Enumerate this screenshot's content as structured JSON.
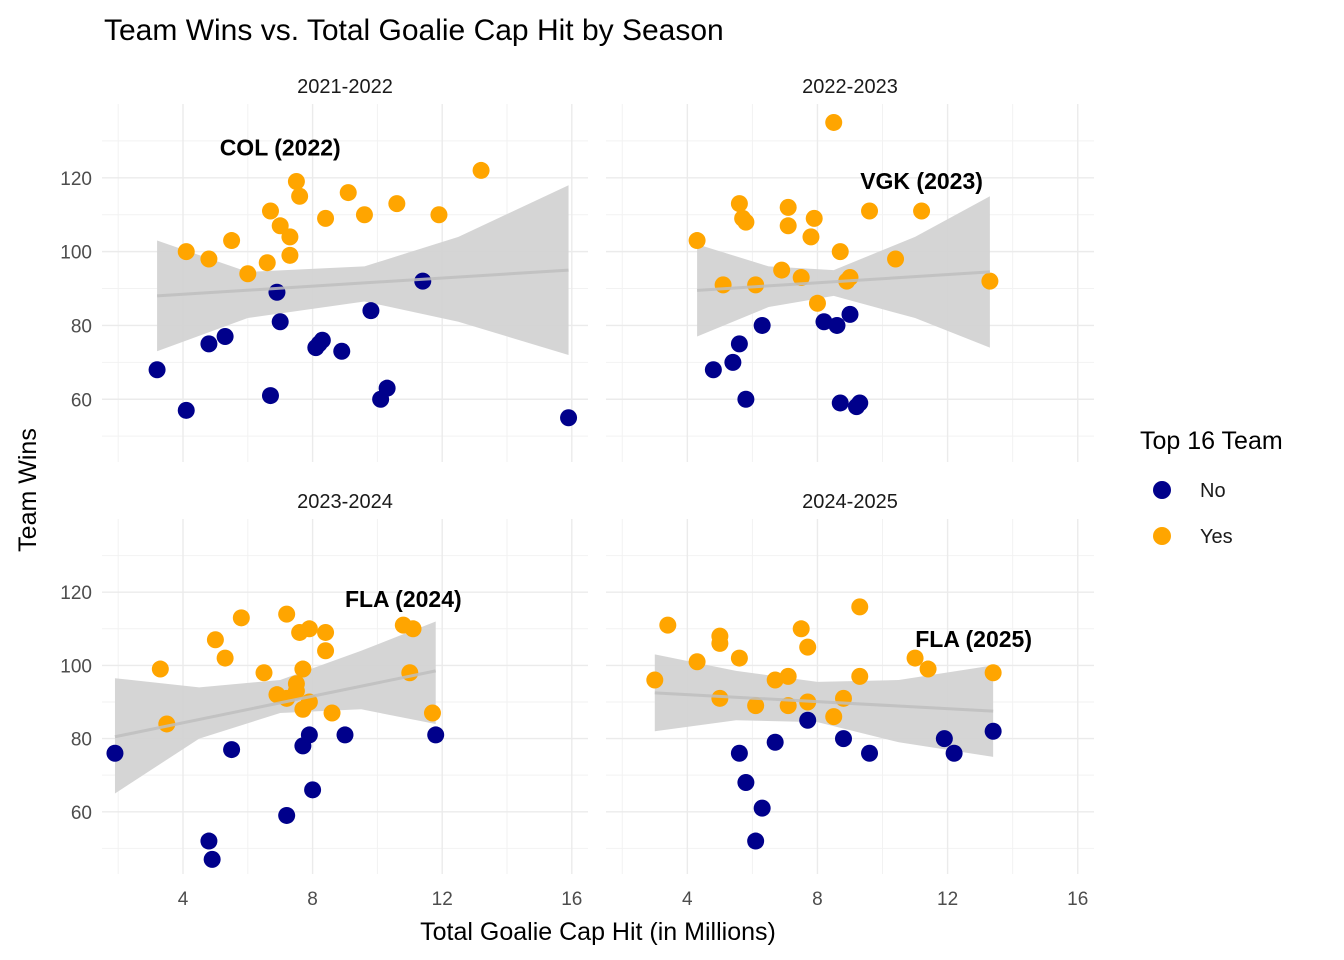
{
  "chart_data": {
    "type": "scatter",
    "title": "Team Wins vs. Total Goalie Cap Hit by Season",
    "xlabel": "Total Goalie Cap Hit (in Millions)",
    "ylabel": "Team Wins",
    "xlim": [
      1.5,
      16.5
    ],
    "ylim": [
      43,
      140
    ],
    "x_ticks": [
      4,
      8,
      12,
      16
    ],
    "y_ticks": [
      60,
      80,
      100,
      120
    ],
    "grid": true,
    "legend": {
      "title": "Top 16 Team",
      "position": "right",
      "entries": [
        {
          "label": "No",
          "color": "#00008B"
        },
        {
          "label": "Yes",
          "color": "#FFA500"
        }
      ]
    },
    "colors": {
      "No": "#00008B",
      "Yes": "#FFA500",
      "trend": "#BEBEBE",
      "band": "#D3D3D3"
    },
    "panels": [
      {
        "name": "2021-2022",
        "annotation": {
          "text": "COL (2022)",
          "x": 7.0,
          "y": 126
        },
        "trend": {
          "x0": 3.2,
          "y0": 88,
          "x1": 15.9,
          "y1": 95
        },
        "band": {
          "x": [
            3.2,
            6,
            9.6,
            12.5,
            15.9
          ],
          "upper": [
            103,
            94.5,
            96,
            104,
            118
          ],
          "lower": [
            73,
            82,
            86.5,
            81,
            72
          ]
        },
        "no": [
          [
            3.2,
            68
          ],
          [
            4.1,
            57
          ],
          [
            4.8,
            75
          ],
          [
            5.3,
            77
          ],
          [
            6.7,
            61
          ],
          [
            6.9,
            89
          ],
          [
            7.0,
            81
          ],
          [
            8.1,
            74
          ],
          [
            8.3,
            76
          ],
          [
            8.2,
            75
          ],
          [
            8.9,
            73
          ],
          [
            9.8,
            84
          ],
          [
            10.1,
            60
          ],
          [
            10.3,
            63
          ],
          [
            11.4,
            92
          ],
          [
            15.9,
            55
          ]
        ],
        "yes": [
          [
            4.1,
            100
          ],
          [
            4.8,
            98
          ],
          [
            5.5,
            103
          ],
          [
            6.0,
            94
          ],
          [
            6.6,
            97
          ],
          [
            6.7,
            111
          ],
          [
            7.0,
            107
          ],
          [
            7.3,
            104
          ],
          [
            7.3,
            99
          ],
          [
            7.5,
            119
          ],
          [
            7.6,
            115
          ],
          [
            8.4,
            109
          ],
          [
            9.1,
            116
          ],
          [
            9.6,
            110
          ],
          [
            10.6,
            113
          ],
          [
            11.9,
            110
          ],
          [
            13.2,
            122
          ]
        ]
      },
      {
        "name": "2022-2023",
        "annotation": {
          "text": "VGK (2023)",
          "x": 11.2,
          "y": 117
        },
        "trend": {
          "x0": 4.3,
          "y0": 89.5,
          "x1": 13.3,
          "y1": 94.5
        },
        "band": {
          "x": [
            4.3,
            6.5,
            8.5,
            11,
            13.3
          ],
          "upper": [
            102,
            96,
            95,
            104,
            115
          ],
          "lower": [
            77,
            85,
            88,
            82,
            74
          ]
        },
        "no": [
          [
            4.8,
            68
          ],
          [
            5.4,
            70
          ],
          [
            5.6,
            75
          ],
          [
            5.8,
            60
          ],
          [
            6.3,
            80
          ],
          [
            8.2,
            81
          ],
          [
            8.6,
            80
          ],
          [
            8.7,
            59
          ],
          [
            9.0,
            83
          ],
          [
            9.2,
            58
          ],
          [
            9.3,
            59
          ]
        ],
        "yes": [
          [
            4.3,
            103
          ],
          [
            5.1,
            91
          ],
          [
            5.6,
            113
          ],
          [
            5.7,
            109
          ],
          [
            5.8,
            108
          ],
          [
            6.1,
            91
          ],
          [
            6.9,
            95
          ],
          [
            7.1,
            112
          ],
          [
            7.1,
            107
          ],
          [
            7.5,
            93
          ],
          [
            7.8,
            104
          ],
          [
            7.9,
            109
          ],
          [
            8.0,
            86
          ],
          [
            8.5,
            135
          ],
          [
            8.7,
            100
          ],
          [
            8.9,
            92
          ],
          [
            9.0,
            93
          ],
          [
            9.6,
            111
          ],
          [
            10.4,
            98
          ],
          [
            11.2,
            111
          ],
          [
            13.3,
            92
          ]
        ]
      },
      {
        "name": "2023-2024",
        "annotation": {
          "text": "FLA (2024)",
          "x": 10.8,
          "y": 116
        },
        "trend": {
          "x0": 1.9,
          "y0": 80.5,
          "x1": 11.8,
          "y1": 98.5
        },
        "band": {
          "x": [
            1.9,
            4.5,
            7,
            9.5,
            11.8
          ],
          "upper": [
            96.5,
            94,
            96,
            104,
            112
          ],
          "lower": [
            65,
            80,
            87,
            88,
            84
          ]
        },
        "no": [
          [
            1.9,
            76
          ],
          [
            4.8,
            52
          ],
          [
            4.9,
            47
          ],
          [
            5.5,
            77
          ],
          [
            7.2,
            59
          ],
          [
            7.7,
            78
          ],
          [
            7.9,
            81
          ],
          [
            8.0,
            66
          ],
          [
            9.0,
            81
          ],
          [
            11.8,
            81
          ]
        ],
        "yes": [
          [
            3.3,
            99
          ],
          [
            3.5,
            84
          ],
          [
            5.0,
            107
          ],
          [
            5.3,
            102
          ],
          [
            5.8,
            113
          ],
          [
            6.5,
            98
          ],
          [
            6.9,
            92
          ],
          [
            7.2,
            91
          ],
          [
            7.2,
            114
          ],
          [
            7.5,
            93
          ],
          [
            7.5,
            95
          ],
          [
            7.6,
            109
          ],
          [
            7.7,
            99
          ],
          [
            7.7,
            88
          ],
          [
            7.9,
            90
          ],
          [
            7.9,
            110
          ],
          [
            8.4,
            109
          ],
          [
            8.4,
            104
          ],
          [
            8.6,
            87
          ],
          [
            10.8,
            111
          ],
          [
            11.0,
            98
          ],
          [
            11.1,
            110
          ],
          [
            11.7,
            87
          ]
        ]
      },
      {
        "name": "2024-2025",
        "annotation": {
          "text": "FLA (2025)",
          "x": 12.8,
          "y": 105
        },
        "trend": {
          "x0": 3.0,
          "y0": 92.5,
          "x1": 13.4,
          "y1": 87.5
        },
        "band": {
          "x": [
            3.0,
            5.5,
            8,
            10.5,
            13.4
          ],
          "upper": [
            103,
            98.5,
            95.5,
            96,
            100
          ],
          "lower": [
            82,
            85,
            84.5,
            79,
            75
          ]
        },
        "no": [
          [
            5.6,
            76
          ],
          [
            5.8,
            68
          ],
          [
            6.1,
            52
          ],
          [
            6.3,
            61
          ],
          [
            6.7,
            79
          ],
          [
            7.7,
            85
          ],
          [
            8.8,
            80
          ],
          [
            9.6,
            76
          ],
          [
            11.9,
            80
          ],
          [
            12.2,
            76
          ],
          [
            13.4,
            82
          ]
        ],
        "yes": [
          [
            3.0,
            96
          ],
          [
            3.4,
            111
          ],
          [
            4.3,
            101
          ],
          [
            5.0,
            108
          ],
          [
            5.0,
            106
          ],
          [
            5.0,
            91
          ],
          [
            5.6,
            102
          ],
          [
            6.1,
            89
          ],
          [
            6.7,
            96
          ],
          [
            7.1,
            89
          ],
          [
            7.1,
            97
          ],
          [
            7.5,
            110
          ],
          [
            7.7,
            105
          ],
          [
            7.7,
            90
          ],
          [
            8.5,
            86
          ],
          [
            8.8,
            91
          ],
          [
            9.3,
            116
          ],
          [
            9.3,
            97
          ],
          [
            11.0,
            102
          ],
          [
            11.4,
            99
          ],
          [
            13.4,
            98
          ]
        ]
      }
    ]
  }
}
